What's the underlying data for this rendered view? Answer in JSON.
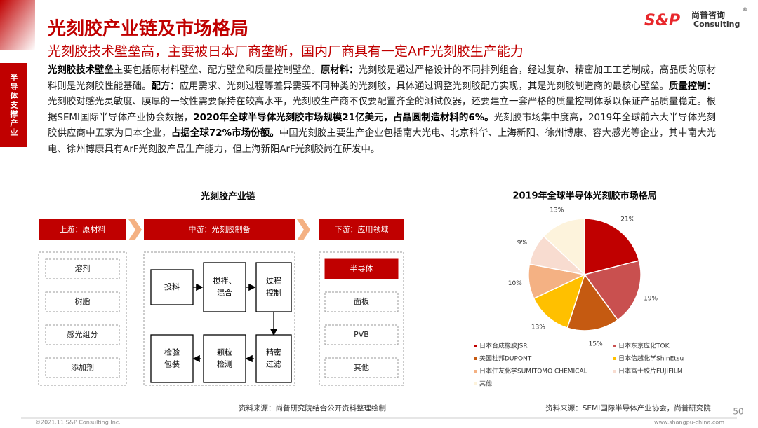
{
  "header": {
    "title": "光刻胶产业链及市场格局",
    "subtitle": "光刻胶技术壁垒高，主要被日本厂商垄断，国内厂商具有一定ArF光刻胶生产能力",
    "sidebar": "半导体支撑产业",
    "logo_brand": "S&P",
    "logo_cn": "尚普咨询",
    "logo_mark": "®",
    "logo_en": "Consulting"
  },
  "body": {
    "segments": [
      {
        "text": "光刻胶技术壁垒",
        "bold": true
      },
      {
        "text": "主要包括原材料壁垒、配方壁垒和质量控制壁垒。",
        "bold": false
      },
      {
        "text": "原材料：",
        "bold": true
      },
      {
        "text": "光刻胶是通过严格设计的不同排列组合，经过复杂、精密加工工艺制成，高品质的原材料则是光刻胶性能基础。",
        "bold": false
      },
      {
        "text": "配方：",
        "bold": true
      },
      {
        "text": "应用需求、光刻过程等差异需要不同种类的光刻胶，具体通过调整光刻胶配方实现，其是光刻胶制造商的最核心壁垒。",
        "bold": false
      },
      {
        "text": "质量控制：",
        "bold": true
      },
      {
        "text": "光刻胶对感光灵敏度、膜厚的一致性需要保持在较高水平，光刻胶生产商不仅要配置齐全的测试仪器，还要建立一套严格的质量控制体系以保证产品质量稳定。根据SEMI国际半导体产业协会数据，",
        "bold": false
      },
      {
        "text": "2020年全球半导体光刻胶市场规模21亿美元，占晶圆制造材料的6%。",
        "bold": true
      },
      {
        "text": "光刻胶市场集中度高，2019年全球前六大半导体光刻胶供应商中五家为日本企业，",
        "bold": false
      },
      {
        "text": "占据全球72%市场份额。",
        "bold": true
      },
      {
        "text": "中国光刻胶主要生产企业包括南大光电、北京科华、上海新阳、徐州博康、容大感光等企业，其中南大光电、徐州博康具有ArF光刻胶产品生产能力，但上海新阳ArF光刻胶尚在研发中。",
        "bold": false
      }
    ]
  },
  "diagram": {
    "title": "光刻胶产业链",
    "stages": [
      "上游：原材料",
      "中游：光刻胶制备",
      "下游：应用领域"
    ],
    "upstream": [
      "溶剂",
      "树脂",
      "感光组分",
      "添加剂"
    ],
    "midstream": [
      [
        "投料"
      ],
      [
        "搅拌、",
        "混合"
      ],
      [
        "过程",
        "控制"
      ],
      [
        "精密",
        "过滤"
      ],
      [
        "颗粒",
        "检测"
      ],
      [
        "检验",
        "包装"
      ]
    ],
    "downstream": [
      "半导体",
      "面板",
      "PVB",
      "其他"
    ],
    "source": "资料来源：尚普研究院结合公开资料整理绘制"
  },
  "chart_data": {
    "type": "pie",
    "title": "2019年全球半导体光刻胶市场格局",
    "categories": [
      "日本合成橡胶JSR",
      "日本东京应化TOK",
      "美国杜邦DUPONT",
      "日本信越化学ShinEtsu",
      "日本住友化学SUMITOMO CHEMICAL",
      "日本富士胶片FUJIFILM",
      "其他"
    ],
    "values": [
      21,
      19,
      15,
      13,
      10,
      9,
      13
    ],
    "value_labels": [
      "21%",
      "19%",
      "15%",
      "13%",
      "10%",
      "9%",
      "13%"
    ],
    "colors": [
      "#c00000",
      "#c9504f",
      "#c55a11",
      "#ffc000",
      "#f4b183",
      "#f8dcd0",
      "#fdf3dc"
    ],
    "source": "资料来源：SEMI国际半导体产业协会，尚普研究院"
  },
  "footer": {
    "copyright": "©2021.11 S&P Consulting Inc.",
    "website": "www.shangpu-china.com",
    "page": 50
  }
}
